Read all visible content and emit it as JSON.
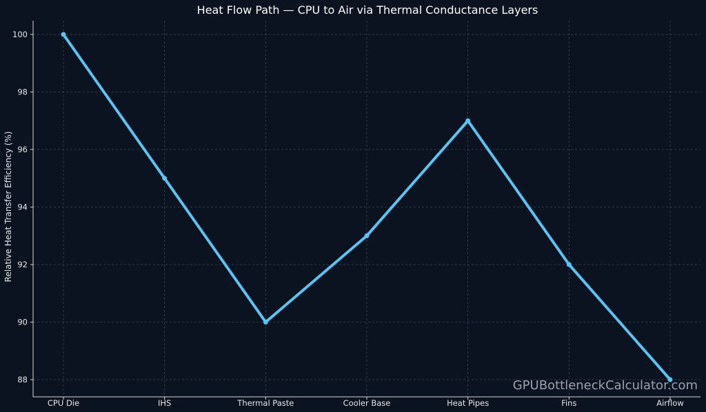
{
  "chart_data": {
    "type": "line",
    "title": "Heat Flow Path — CPU to Air via Thermal Conductance Layers",
    "xlabel": "",
    "ylabel": "Relative Heat Transfer Efficiency (%)",
    "categories": [
      "CPU Die",
      "IHS",
      "Thermal Paste",
      "Cooler Base",
      "Heat Pipes",
      "Fins",
      "Airflow"
    ],
    "series": [
      {
        "values": [
          100,
          95,
          90,
          93,
          97,
          92,
          88
        ]
      }
    ],
    "yticks": [
      "88",
      "90",
      "92",
      "94",
      "96",
      "98",
      "100"
    ],
    "ylim": [
      87.4,
      100.5
    ],
    "grid": true,
    "line_color": "#5bc3f2"
  },
  "watermark": "GPUBottleneckCalculator.com"
}
